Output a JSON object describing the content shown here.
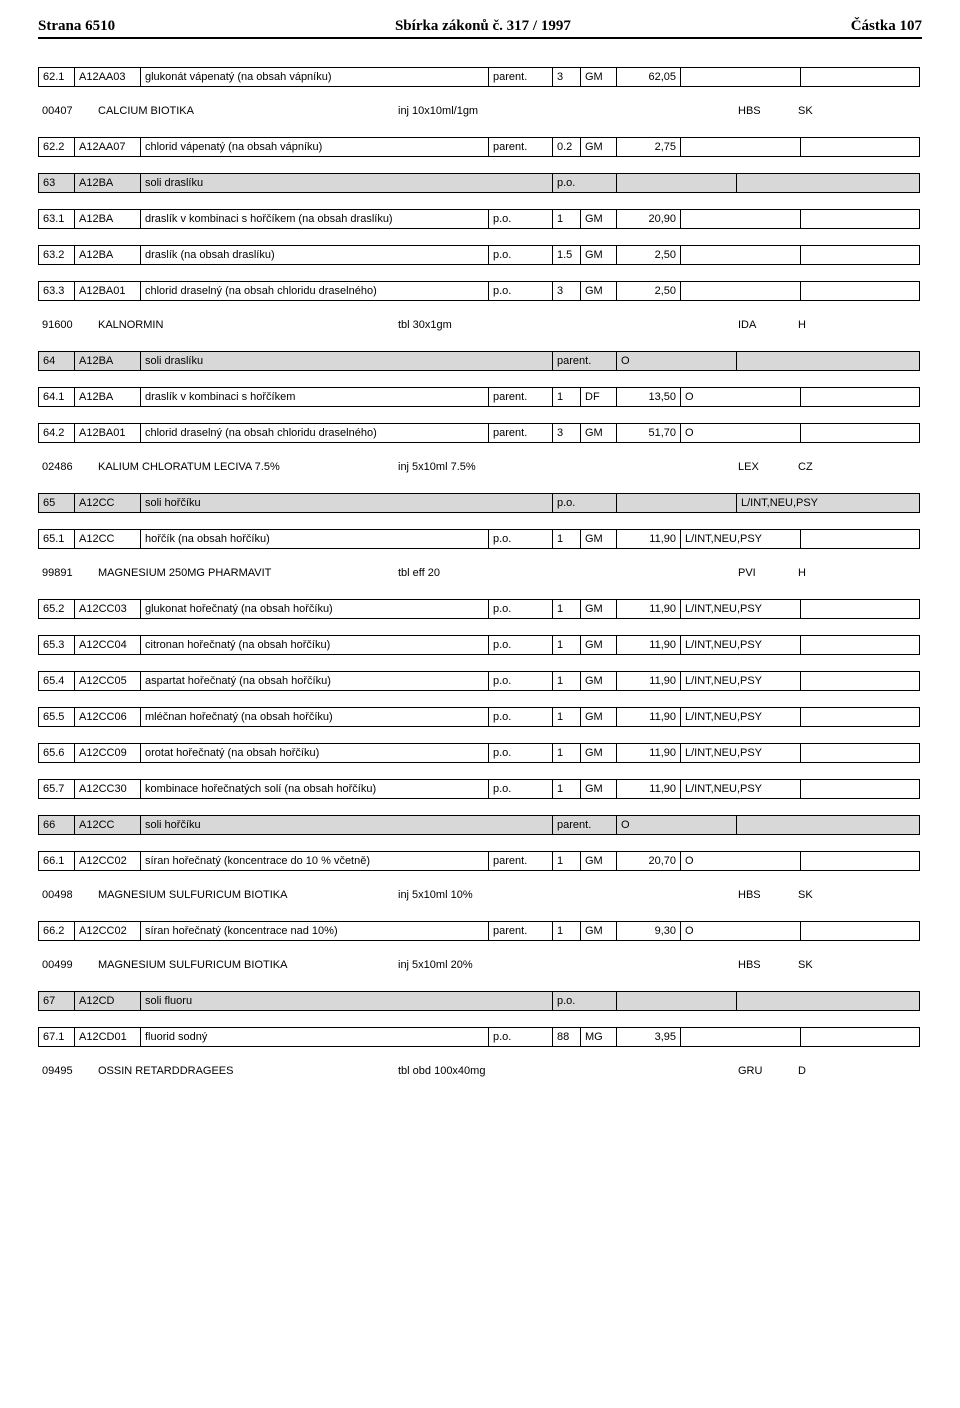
{
  "header": {
    "page": "Strana 6510",
    "title_prefix": "Sbírka zákonů č. ",
    "title_num": "317",
    "title_suffix": " / 1997",
    "part": "Částka 107"
  },
  "rows": [
    {
      "type": "row",
      "cells": [
        "62.1",
        "A12AA03",
        "glukonát vápenatý (na obsah vápníku)",
        "parent.",
        "3",
        "GM",
        "62,05",
        "",
        ""
      ]
    },
    {
      "type": "med",
      "code": "00407",
      "name": "CALCIUM BIOTIKA",
      "form": "inj 10x10ml/1gm",
      "": "",
      "mfr": "HBS",
      "ctry": "SK"
    },
    {
      "type": "row",
      "cells": [
        "62.2",
        "A12AA07",
        "chlorid vápenatý (na obsah vápníku)",
        "parent.",
        "0.2",
        "GM",
        "2,75",
        "",
        ""
      ]
    },
    {
      "type": "gray",
      "cells": [
        "63",
        "A12BA",
        "soli draslíku",
        "p.o.",
        "",
        ""
      ]
    },
    {
      "type": "row",
      "cells": [
        "63.1",
        "A12BA",
        "draslík v kombinaci s hořčíkem (na obsah draslíku)",
        "p.o.",
        "1",
        "GM",
        "20,90",
        "",
        ""
      ]
    },
    {
      "type": "row",
      "cells": [
        "63.2",
        "A12BA",
        "draslík (na obsah draslíku)",
        "p.o.",
        "1.5",
        "GM",
        "2,50",
        "",
        ""
      ]
    },
    {
      "type": "row",
      "cells": [
        "63.3",
        "A12BA01",
        "chlorid draselný (na obsah chloridu draselného)",
        "p.o.",
        "3",
        "GM",
        "2,50",
        "",
        ""
      ]
    },
    {
      "type": "med",
      "code": "91600",
      "name": "KALNORMIN",
      "form": "tbl 30x1gm",
      "": "",
      "mfr": "IDA",
      "ctry": "H"
    },
    {
      "type": "gray",
      "cells": [
        "64",
        "A12BA",
        "soli draslíku",
        "parent.",
        "O",
        ""
      ]
    },
    {
      "type": "row",
      "cells": [
        "64.1",
        "A12BA",
        "draslík v kombinaci s hořčíkem",
        "parent.",
        "1",
        "DF",
        "13,50",
        "O",
        ""
      ]
    },
    {
      "type": "row",
      "cells": [
        "64.2",
        "A12BA01",
        "chlorid draselný (na obsah chloridu draselného)",
        "parent.",
        "3",
        "GM",
        "51,70",
        "O",
        ""
      ]
    },
    {
      "type": "med",
      "code": "02486",
      "name": "KALIUM CHLORATUM LECIVA 7.5%",
      "form": "inj 5x10ml 7.5%",
      "": "",
      "mfr": "LEX",
      "ctry": "CZ"
    },
    {
      "type": "gray",
      "cells": [
        "65",
        "A12CC",
        "soli hořčíku",
        "p.o.",
        "",
        "L/INT,NEU,PSY"
      ]
    },
    {
      "type": "row",
      "cells": [
        "65.1",
        "A12CC",
        "hořčík (na obsah hořčíku)",
        "p.o.",
        "1",
        "GM",
        "11,90",
        "L/INT,NEU,PSY",
        ""
      ]
    },
    {
      "type": "med",
      "code": "99891",
      "name": "MAGNESIUM 250MG PHARMAVIT",
      "form": "tbl eff 20",
      "": "",
      "mfr": "PVI",
      "ctry": "H"
    },
    {
      "type": "row",
      "cells": [
        "65.2",
        "A12CC03",
        "glukonat hořečnatý (na obsah hořčíku)",
        "p.o.",
        "1",
        "GM",
        "11,90",
        "L/INT,NEU,PSY",
        ""
      ]
    },
    {
      "type": "row",
      "cells": [
        "65.3",
        "A12CC04",
        "citronan hořečnatý (na obsah hořčíku)",
        "p.o.",
        "1",
        "GM",
        "11,90",
        "L/INT,NEU,PSY",
        ""
      ]
    },
    {
      "type": "row",
      "cells": [
        "65.4",
        "A12CC05",
        "aspartat hořečnatý (na obsah hořčíku)",
        "p.o.",
        "1",
        "GM",
        "11,90",
        "L/INT,NEU,PSY",
        ""
      ]
    },
    {
      "type": "row",
      "cells": [
        "65.5",
        "A12CC06",
        "mléčnan hořečnatý (na obsah hořčíku)",
        "p.o.",
        "1",
        "GM",
        "11,90",
        "L/INT,NEU,PSY",
        ""
      ]
    },
    {
      "type": "row",
      "cells": [
        "65.6",
        "A12CC09",
        "orotat hořečnatý (na obsah hořčíku)",
        "p.o.",
        "1",
        "GM",
        "11,90",
        "L/INT,NEU,PSY",
        ""
      ]
    },
    {
      "type": "row",
      "cells": [
        "65.7",
        "A12CC30",
        "kombinace hořečnatých solí (na obsah hořčíku)",
        "p.o.",
        "1",
        "GM",
        "11,90",
        "L/INT,NEU,PSY",
        ""
      ]
    },
    {
      "type": "gray",
      "cells": [
        "66",
        "A12CC",
        "soli hořčíku",
        "parent.",
        "O",
        ""
      ]
    },
    {
      "type": "row",
      "cells": [
        "66.1",
        "A12CC02",
        "síran hořečnatý (koncentrace do 10 % včetně)",
        "parent.",
        "1",
        "GM",
        "20,70",
        "O",
        ""
      ]
    },
    {
      "type": "med",
      "code": "00498",
      "name": "MAGNESIUM SULFURICUM BIOTIKA",
      "form": "inj 5x10ml 10%",
      "": "",
      "mfr": "HBS",
      "ctry": "SK"
    },
    {
      "type": "row",
      "cells": [
        "66.2",
        "A12CC02",
        "síran hořečnatý (koncentrace nad 10%)",
        "parent.",
        "1",
        "GM",
        "9,30",
        "O",
        ""
      ]
    },
    {
      "type": "med",
      "code": "00499",
      "name": "MAGNESIUM SULFURICUM BIOTIKA",
      "form": "inj 5x10ml 20%",
      "": "",
      "mfr": "HBS",
      "ctry": "SK"
    },
    {
      "type": "gray",
      "cells": [
        "67",
        "A12CD",
        "soli fluoru",
        "p.o.",
        "",
        ""
      ]
    },
    {
      "type": "row",
      "cells": [
        "67.1",
        "A12CD01",
        "fluorid sodný",
        "p.o.",
        "88",
        "MG",
        "3,95",
        "",
        ""
      ]
    },
    {
      "type": "med",
      "code": "09495",
      "name": "OSSIN RETARDDRAGEES",
      "form": "tbl obd 100x40mg",
      "": "",
      "mfr": "GRU",
      "ctry": "D"
    }
  ]
}
